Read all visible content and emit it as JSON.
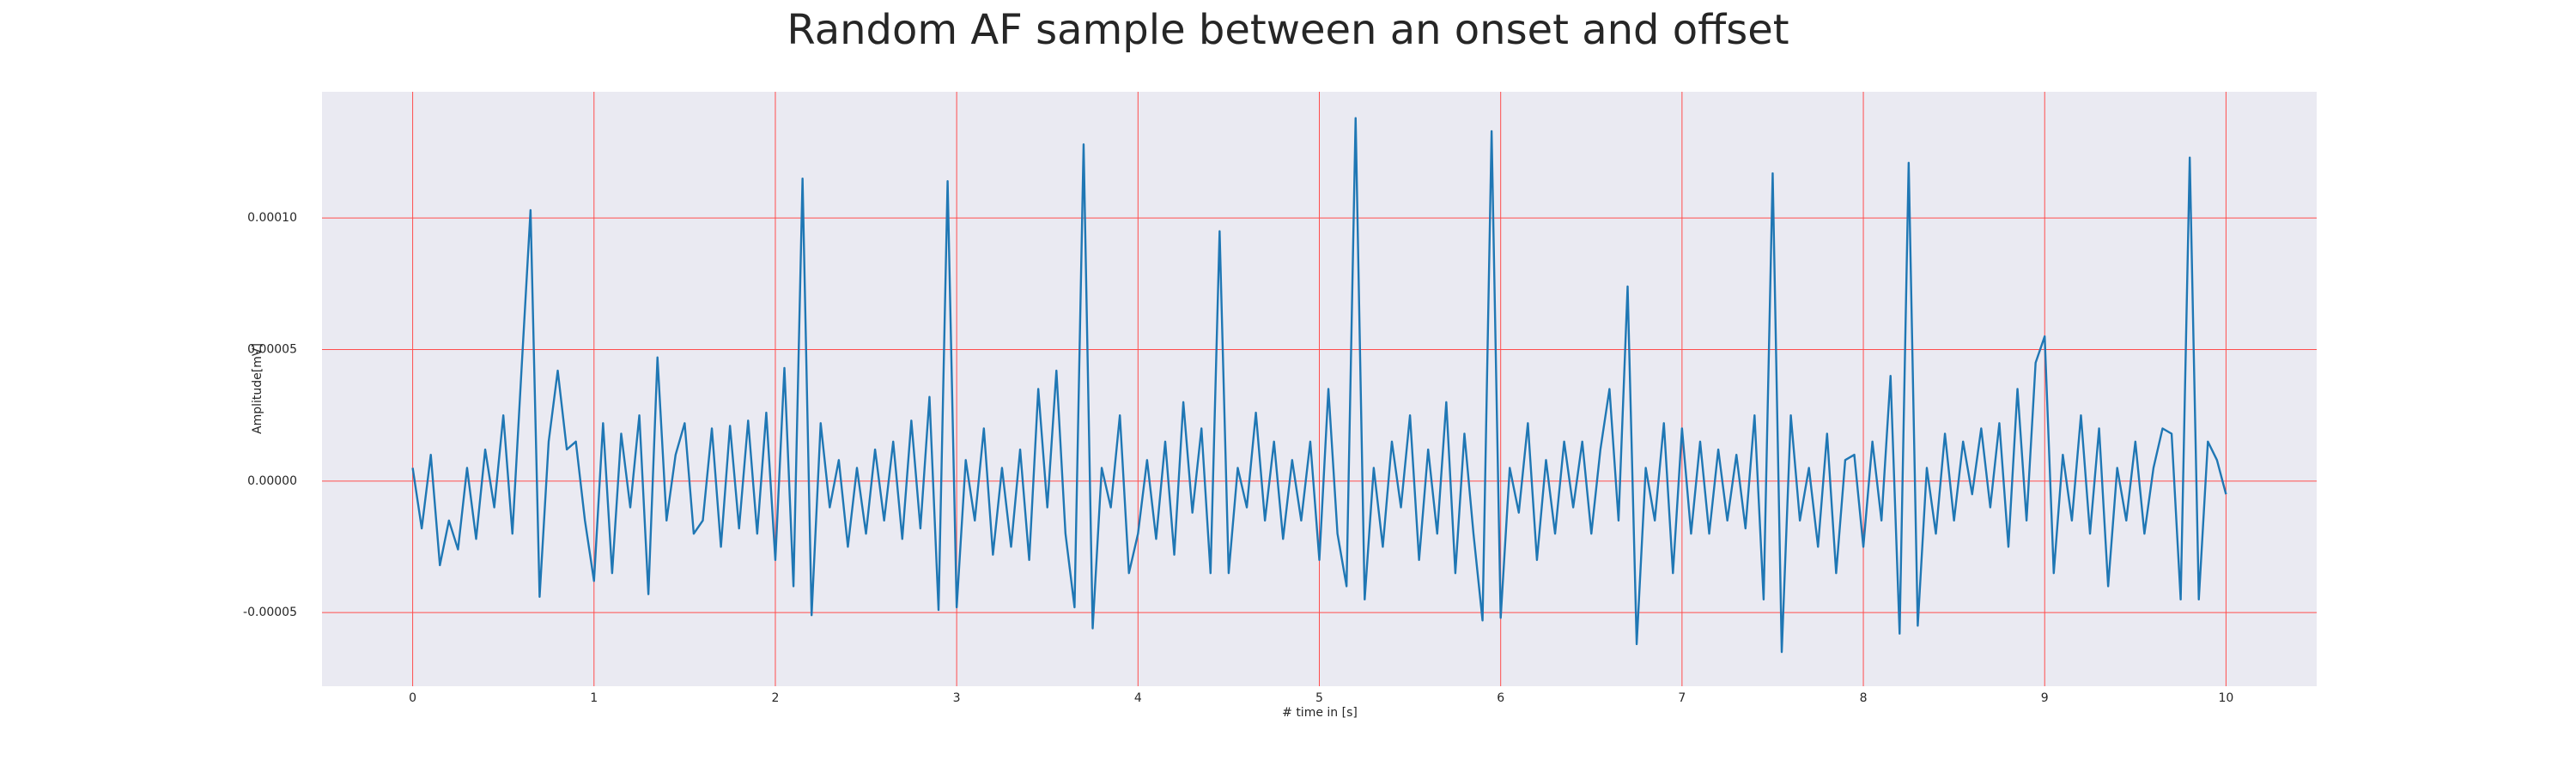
{
  "chart_data": {
    "type": "line",
    "title": "Random AF sample between an onset and offset",
    "x_label": "# time in [s]",
    "y_label": "Amplitude[mV]",
    "xlim": [
      -0.5,
      10.5
    ],
    "ylim": [
      -7.8e-05,
      0.000148
    ],
    "xticks": [
      0,
      1,
      2,
      3,
      4,
      5,
      6,
      7,
      8,
      9,
      10
    ],
    "yticks": [
      {
        "value": -5e-05,
        "label": "-0.00005"
      },
      {
        "value": 0,
        "label": "0.00000"
      },
      {
        "value": 5e-05,
        "label": "0.00005"
      },
      {
        "value": 0.0001,
        "label": "0.00010"
      }
    ],
    "grid": true,
    "grid_color": "#ff4d4d",
    "series": [
      {
        "color": "#1f77b4",
        "x": [
          0,
          0.05,
          0.1,
          0.15,
          0.2,
          0.25,
          0.3,
          0.35,
          0.4,
          0.45,
          0.5,
          0.55,
          0.6,
          0.65,
          0.7,
          0.75,
          0.8,
          0.85,
          0.9,
          0.95,
          1,
          1.05,
          1.1,
          1.15,
          1.2,
          1.25,
          1.3,
          1.35,
          1.4,
          1.45,
          1.5,
          1.55,
          1.6,
          1.65,
          1.7,
          1.75,
          1.8,
          1.85,
          1.9,
          1.95,
          2,
          2.05,
          2.1,
          2.15,
          2.2,
          2.25,
          2.3,
          2.35,
          2.4,
          2.45,
          2.5,
          2.55,
          2.6,
          2.65,
          2.7,
          2.75,
          2.8,
          2.85,
          2.9,
          2.95,
          3,
          3.05,
          3.1,
          3.15,
          3.2,
          3.25,
          3.3,
          3.35,
          3.4,
          3.45,
          3.5,
          3.55,
          3.6,
          3.65,
          3.7,
          3.75,
          3.8,
          3.85,
          3.9,
          3.95,
          4,
          4.05,
          4.1,
          4.15,
          4.2,
          4.25,
          4.3,
          4.35,
          4.4,
          4.45,
          4.5,
          4.55,
          4.6,
          4.65,
          4.7,
          4.75,
          4.8,
          4.85,
          4.9,
          4.95,
          5,
          5.05,
          5.1,
          5.15,
          5.2,
          5.25,
          5.3,
          5.35,
          5.4,
          5.45,
          5.5,
          5.55,
          5.6,
          5.65,
          5.7,
          5.75,
          5.8,
          5.85,
          5.9,
          5.95,
          6,
          6.05,
          6.1,
          6.15,
          6.2,
          6.25,
          6.3,
          6.35,
          6.4,
          6.45,
          6.5,
          6.55,
          6.6,
          6.65,
          6.7,
          6.75,
          6.8,
          6.85,
          6.9,
          6.95,
          7,
          7.05,
          7.1,
          7.15,
          7.2,
          7.25,
          7.3,
          7.35,
          7.4,
          7.45,
          7.5,
          7.55,
          7.6,
          7.65,
          7.7,
          7.75,
          7.8,
          7.85,
          7.9,
          7.95,
          8,
          8.05,
          8.1,
          8.15,
          8.2,
          8.25,
          8.3,
          8.35,
          8.4,
          8.45,
          8.5,
          8.55,
          8.6,
          8.65,
          8.7,
          8.75,
          8.8,
          8.85,
          8.9,
          8.95,
          9,
          9.05,
          9.1,
          9.15,
          9.2,
          9.25,
          9.3,
          9.35,
          9.4,
          9.45,
          9.5,
          9.55,
          9.6,
          9.65,
          9.7,
          9.75,
          9.8,
          9.85,
          9.9,
          9.95,
          10
        ],
        "values": [
          5e-06,
          -1.8e-05,
          1e-05,
          -3.2e-05,
          -1.5e-05,
          -2.6e-05,
          5e-06,
          -2.2e-05,
          1.2e-05,
          -1e-05,
          2.5e-05,
          -2e-05,
          4.2e-05,
          0.000103,
          -4.4e-05,
          1.5e-05,
          4.2e-05,
          1.2e-05,
          1.5e-05,
          -1.5e-05,
          -3.8e-05,
          2.2e-05,
          -3.5e-05,
          1.8e-05,
          -1e-05,
          2.5e-05,
          -4.3e-05,
          4.7e-05,
          -1.5e-05,
          1e-05,
          2.2e-05,
          -2e-05,
          -1.5e-05,
          2e-05,
          -2.5e-05,
          2.1e-05,
          -1.8e-05,
          2.3e-05,
          -2e-05,
          2.6e-05,
          -3e-05,
          4.3e-05,
          -4e-05,
          0.000115,
          -5.1e-05,
          2.2e-05,
          -1e-05,
          8e-06,
          -2.5e-05,
          5e-06,
          -2e-05,
          1.2e-05,
          -1.5e-05,
          1.5e-05,
          -2.2e-05,
          2.3e-05,
          -1.8e-05,
          3.2e-05,
          -4.9e-05,
          0.000114,
          -4.8e-05,
          8e-06,
          -1.5e-05,
          2e-05,
          -2.8e-05,
          5e-06,
          -2.5e-05,
          1.2e-05,
          -3e-05,
          3.5e-05,
          -1e-05,
          4.2e-05,
          -2e-05,
          -4.8e-05,
          0.000128,
          -5.6e-05,
          5e-06,
          -1e-05,
          2.5e-05,
          -3.5e-05,
          -2e-05,
          8e-06,
          -2.2e-05,
          1.5e-05,
          -2.8e-05,
          3e-05,
          -1.2e-05,
          2e-05,
          -3.5e-05,
          9.5e-05,
          -3.5e-05,
          5e-06,
          -1e-05,
          2.6e-05,
          -1.5e-05,
          1.5e-05,
          -2.2e-05,
          8e-06,
          -1.5e-05,
          1.5e-05,
          -3e-05,
          3.5e-05,
          -2e-05,
          -4e-05,
          0.000138,
          -4.5e-05,
          5e-06,
          -2.5e-05,
          1.5e-05,
          -1e-05,
          2.5e-05,
          -3e-05,
          1.2e-05,
          -2e-05,
          3e-05,
          -3.5e-05,
          1.8e-05,
          -2e-05,
          -5.3e-05,
          0.000133,
          -5.2e-05,
          5e-06,
          -1.2e-05,
          2.2e-05,
          -3e-05,
          8e-06,
          -2e-05,
          1.5e-05,
          -1e-05,
          1.5e-05,
          -2e-05,
          1.2e-05,
          3.5e-05,
          -1.5e-05,
          7.4e-05,
          -6.2e-05,
          5e-06,
          -1.5e-05,
          2.2e-05,
          -3.5e-05,
          2e-05,
          -2e-05,
          1.5e-05,
          -2e-05,
          1.2e-05,
          -1.5e-05,
          1e-05,
          -1.8e-05,
          2.5e-05,
          -4.5e-05,
          0.000117,
          -6.5e-05,
          2.5e-05,
          -1.5e-05,
          5e-06,
          -2.5e-05,
          1.8e-05,
          -3.5e-05,
          8e-06,
          1e-05,
          -2.5e-05,
          1.5e-05,
          -1.5e-05,
          4e-05,
          -5.8e-05,
          0.000121,
          -5.5e-05,
          5e-06,
          -2e-05,
          1.8e-05,
          -1.5e-05,
          1.5e-05,
          -5e-06,
          2e-05,
          -1e-05,
          2.2e-05,
          -2.5e-05,
          3.5e-05,
          -1.5e-05,
          4.5e-05,
          5.5e-05,
          -3.5e-05,
          1e-05,
          -1.5e-05,
          2.5e-05,
          -2e-05,
          2e-05,
          -4e-05,
          5e-06,
          -1.5e-05,
          1.5e-05,
          -2e-05,
          5e-06,
          2e-05,
          1.8e-05,
          -4.5e-05,
          0.000123,
          -4.5e-05,
          1.5e-05,
          8e-06,
          -5e-06
        ]
      }
    ]
  }
}
